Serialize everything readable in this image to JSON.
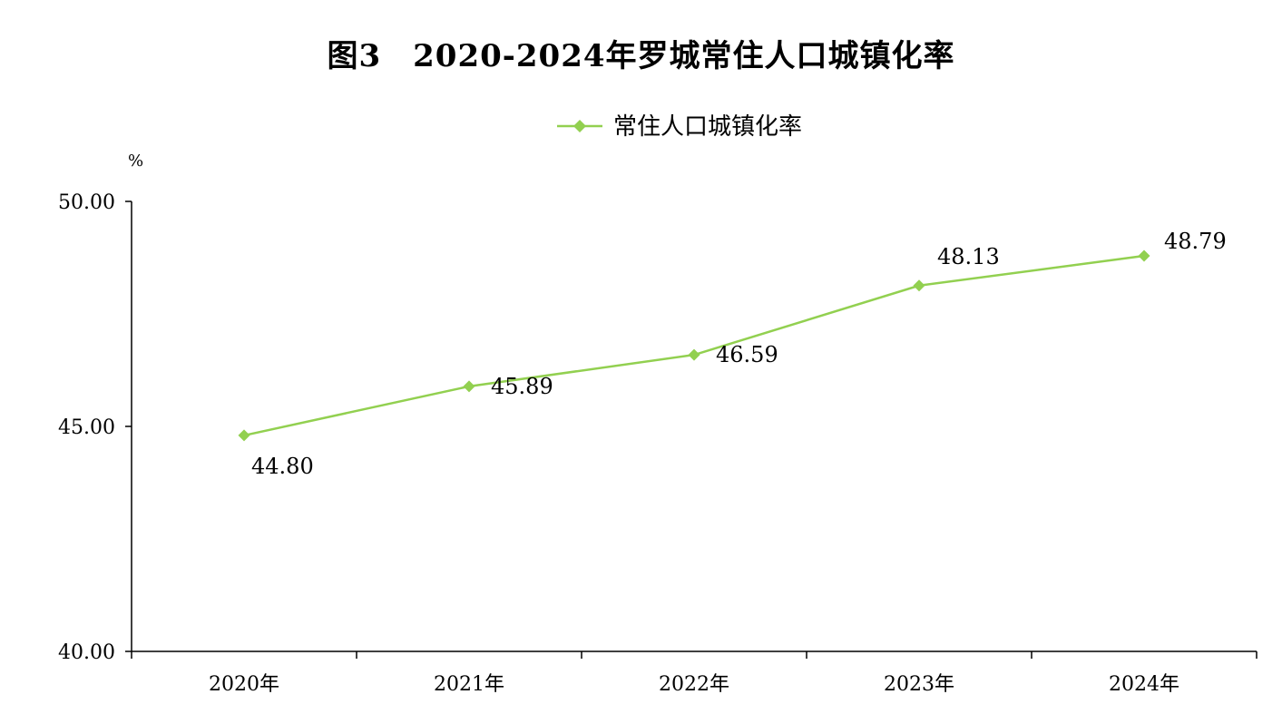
{
  "chart_data": {
    "type": "line",
    "title": "图3　2020-2024年罗城常住人口城镇化率",
    "ylabel": "%",
    "xlabel": "",
    "categories": [
      "2020年",
      "2021年",
      "2022年",
      "2023年",
      "2024年"
    ],
    "series": [
      {
        "name": "常住人口城镇化率",
        "values": [
          44.8,
          45.89,
          46.59,
          48.13,
          48.79
        ],
        "color": "#92d050"
      }
    ],
    "data_labels": [
      "44.80",
      "45.89",
      "46.59",
      "48.13",
      "48.79"
    ],
    "ylim": [
      40,
      50
    ],
    "yticks": [
      40,
      45,
      50
    ],
    "ytick_labels": [
      "40.00",
      "45.00",
      "50.00"
    ],
    "legend_position": "top-center",
    "grid": false
  }
}
